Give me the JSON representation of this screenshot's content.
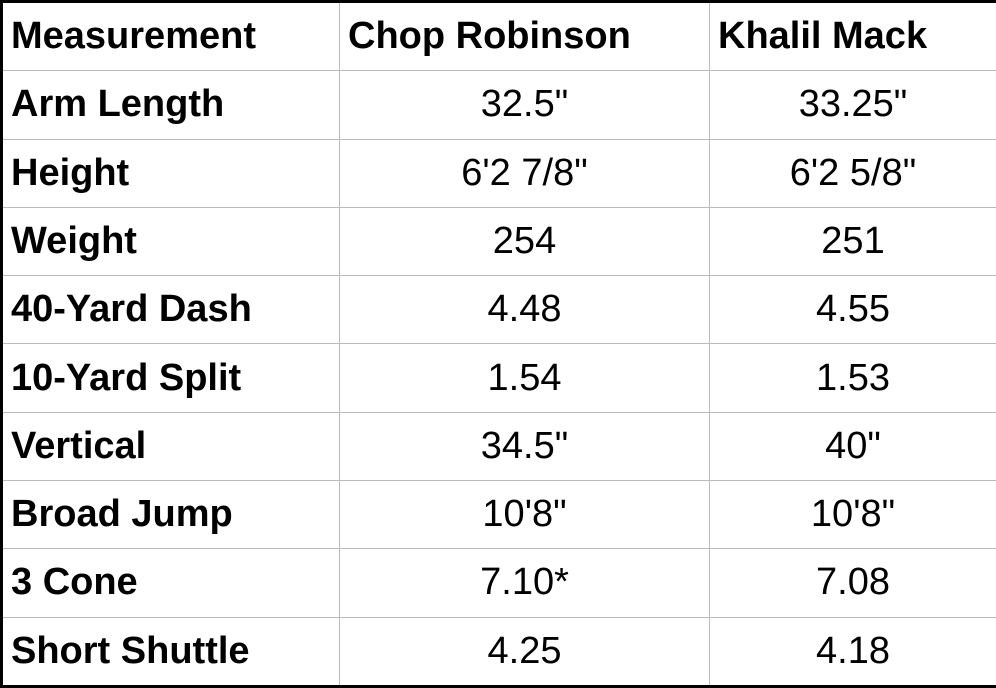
{
  "table": {
    "header": [
      "Measurement",
      "Chop Robinson",
      "Khalil Mack"
    ],
    "rows": [
      [
        "Arm Length",
        "32.5\"",
        "33.25\""
      ],
      [
        "Height",
        "6'2 7/8\"",
        "6'2 5/8\""
      ],
      [
        "Weight",
        "254",
        "251"
      ],
      [
        "40-Yard Dash",
        "4.48",
        "4.55"
      ],
      [
        "10-Yard Split",
        "1.54",
        "1.53"
      ],
      [
        "Vertical",
        "34.5\"",
        "40\""
      ],
      [
        "Broad Jump",
        "10'8\"",
        "10'8\""
      ],
      [
        "3 Cone",
        "7.10*",
        "7.08"
      ],
      [
        "Short Shuttle",
        "4.25",
        "4.18"
      ]
    ]
  }
}
